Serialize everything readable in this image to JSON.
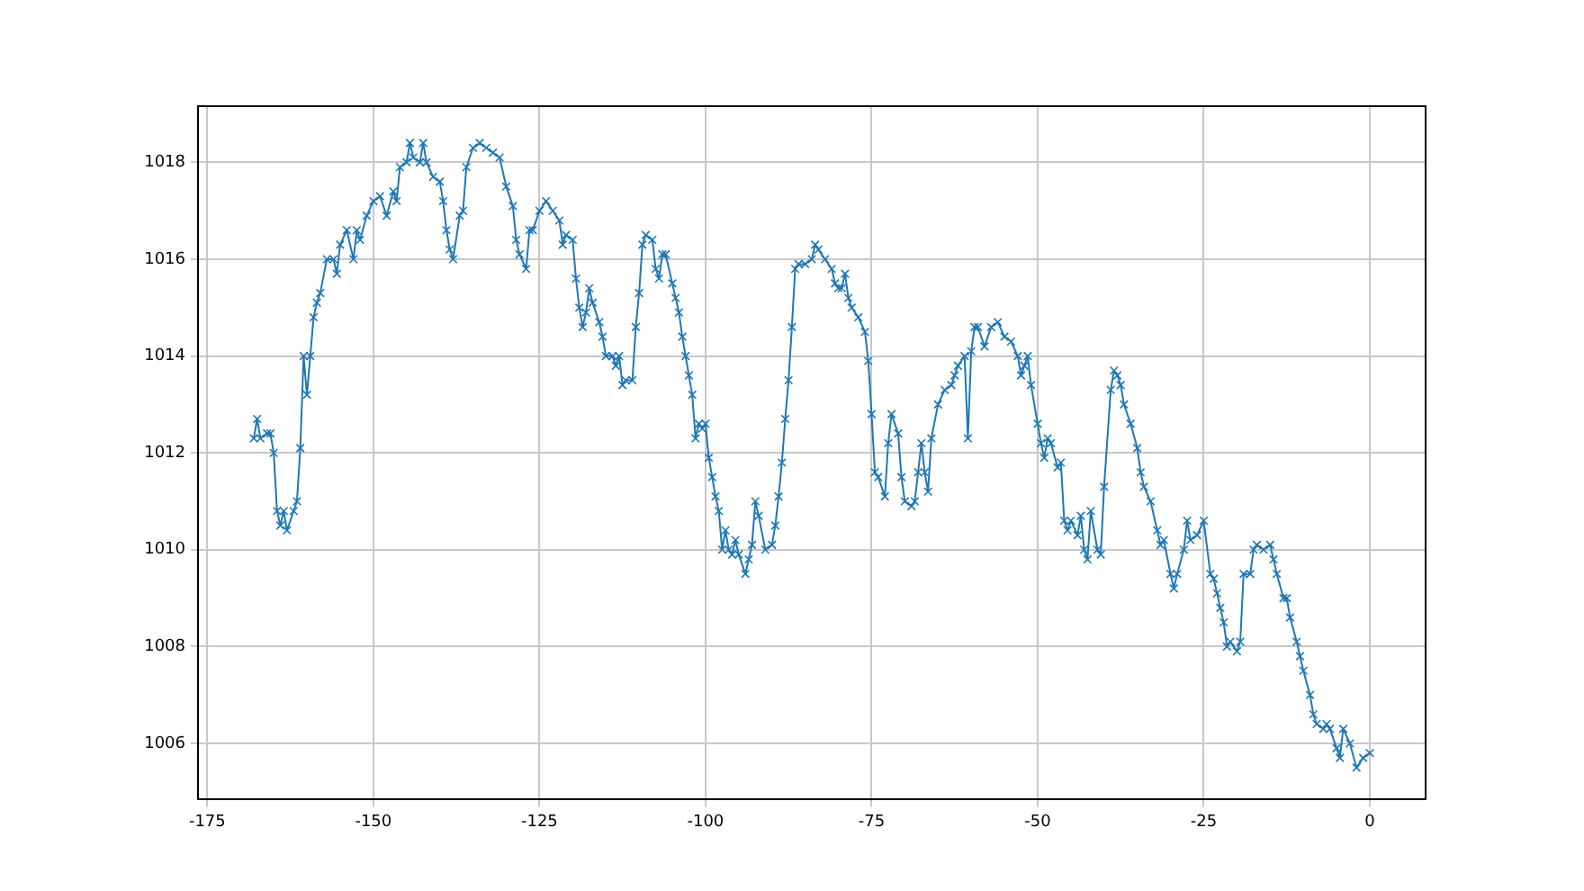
{
  "chart_data": {
    "type": "line",
    "x": [
      -168,
      -167.5,
      -167,
      -166,
      -165.5,
      -165,
      -164.5,
      -164,
      -163.5,
      -163,
      -162,
      -161.5,
      -161,
      -160.5,
      -160,
      -159.5,
      -159,
      -158.5,
      -158,
      -157,
      -156,
      -155.5,
      -155,
      -154,
      -153,
      -152.5,
      -152,
      -151,
      -150,
      -149,
      -148,
      -147,
      -146.5,
      -146,
      -145,
      -144.5,
      -144,
      -143,
      -142.5,
      -142,
      -141,
      -140,
      -139.5,
      -139,
      -138.5,
      -138,
      -137,
      -136.5,
      -136,
      -135,
      -134,
      -133,
      -132,
      -131,
      -130,
      -129,
      -128.5,
      -128,
      -127,
      -126.5,
      -126,
      -125,
      -124,
      -123,
      -122,
      -121.5,
      -121,
      -120,
      -119.5,
      -119,
      -118.5,
      -118,
      -117.5,
      -117,
      -116,
      -115.5,
      -115,
      -114,
      -113.5,
      -113,
      -112.5,
      -112,
      -111,
      -110.5,
      -110,
      -109.5,
      -109,
      -108,
      -107.5,
      -107,
      -106.5,
      -106,
      -105,
      -104.5,
      -104,
      -103.5,
      -103,
      -102.5,
      -102,
      -101.5,
      -101,
      -100.5,
      -100,
      -99.5,
      -99,
      -98.5,
      -98,
      -97.5,
      -97,
      -96.5,
      -96,
      -95.5,
      -95,
      -94,
      -93.5,
      -93,
      -92.5,
      -92,
      -91,
      -90,
      -89.5,
      -89,
      -88.5,
      -88,
      -87.5,
      -87,
      -86.5,
      -86,
      -85,
      -84,
      -83.5,
      -83,
      -82,
      -81,
      -80.5,
      -80,
      -79.5,
      -79,
      -78.5,
      -78,
      -77,
      -76,
      -75.5,
      -75,
      -74.5,
      -74,
      -73,
      -72.5,
      -72,
      -71,
      -70.5,
      -70,
      -69,
      -68.5,
      -68,
      -67.5,
      -67,
      -66.5,
      -66,
      -65,
      -64,
      -63,
      -62.5,
      -62,
      -61,
      -60.5,
      -60,
      -59.5,
      -59,
      -58,
      -57,
      -56,
      -55,
      -54,
      -53,
      -52.5,
      -52,
      -51.5,
      -51,
      -50,
      -49.5,
      -49,
      -48.5,
      -48,
      -47,
      -46.5,
      -46,
      -45.5,
      -45,
      -44,
      -43.5,
      -43,
      -42.5,
      -42,
      -41,
      -40.5,
      -40,
      -39,
      -38.5,
      -38,
      -37.5,
      -37,
      -36,
      -35,
      -34.5,
      -34,
      -33,
      -32,
      -31.5,
      -31,
      -30,
      -29.5,
      -29,
      -28,
      -27.5,
      -27,
      -26,
      -25,
      -24,
      -23.5,
      -23,
      -22.5,
      -22,
      -21.5,
      -21,
      -20,
      -19.5,
      -19,
      -18,
      -17.5,
      -17,
      -16,
      -15,
      -14.5,
      -14,
      -13,
      -12.5,
      -12,
      -11,
      -10.5,
      -10,
      -9,
      -8.5,
      -8,
      -7,
      -6.5,
      -6,
      -5,
      -4.5,
      -4,
      -3,
      -2,
      -1,
      0
    ],
    "series": [
      {
        "color": "#1f77b4",
        "values": [
          1012.3,
          1012.7,
          1012.3,
          1012.4,
          1012.4,
          1012.0,
          1010.8,
          1010.5,
          1010.8,
          1010.4,
          1010.8,
          1011.0,
          1012.1,
          1014.0,
          1013.2,
          1014.0,
          1014.8,
          1015.1,
          1015.3,
          1016.0,
          1016.0,
          1015.7,
          1016.3,
          1016.6,
          1016.0,
          1016.6,
          1016.4,
          1016.9,
          1017.2,
          1017.3,
          1016.9,
          1017.4,
          1017.2,
          1017.9,
          1018.0,
          1018.4,
          1018.1,
          1018.0,
          1018.4,
          1018.0,
          1017.7,
          1017.6,
          1017.2,
          1016.6,
          1016.2,
          1016.0,
          1016.9,
          1017.0,
          1017.9,
          1018.3,
          1018.4,
          1018.3,
          1018.2,
          1018.1,
          1017.5,
          1017.1,
          1016.4,
          1016.1,
          1015.8,
          1016.6,
          1016.6,
          1017.0,
          1017.2,
          1017.0,
          1016.8,
          1016.3,
          1016.5,
          1016.4,
          1015.6,
          1015.0,
          1014.6,
          1014.9,
          1015.4,
          1015.1,
          1014.7,
          1014.4,
          1014.0,
          1014.0,
          1013.8,
          1014.0,
          1013.4,
          1013.5,
          1013.5,
          1014.6,
          1015.3,
          1016.3,
          1016.5,
          1016.4,
          1015.8,
          1015.6,
          1016.1,
          1016.1,
          1015.5,
          1015.2,
          1014.9,
          1014.4,
          1014.0,
          1013.6,
          1013.2,
          1012.3,
          1012.6,
          1012.5,
          1012.6,
          1011.9,
          1011.5,
          1011.1,
          1010.8,
          1010.0,
          1010.4,
          1010.0,
          1009.9,
          1010.2,
          1009.9,
          1009.5,
          1009.8,
          1010.1,
          1011.0,
          1010.7,
          1010.0,
          1010.1,
          1010.5,
          1011.1,
          1011.8,
          1012.7,
          1013.5,
          1014.6,
          1015.8,
          1015.9,
          1015.9,
          1016.0,
          1016.3,
          1016.2,
          1016.0,
          1015.8,
          1015.5,
          1015.4,
          1015.4,
          1015.7,
          1015.2,
          1015.0,
          1014.8,
          1014.5,
          1013.9,
          1012.8,
          1011.6,
          1011.5,
          1011.1,
          1012.2,
          1012.8,
          1012.4,
          1011.5,
          1011.0,
          1010.9,
          1011.0,
          1011.6,
          1012.2,
          1011.6,
          1011.2,
          1012.3,
          1013.0,
          1013.3,
          1013.4,
          1013.6,
          1013.8,
          1014.0,
          1012.3,
          1014.1,
          1014.6,
          1014.6,
          1014.2,
          1014.6,
          1014.7,
          1014.4,
          1014.3,
          1014.0,
          1013.6,
          1013.8,
          1014.0,
          1013.4,
          1012.6,
          1012.2,
          1011.9,
          1012.3,
          1012.2,
          1011.7,
          1011.8,
          1010.6,
          1010.4,
          1010.6,
          1010.3,
          1010.7,
          1010.0,
          1009.8,
          1010.8,
          1010.0,
          1009.9,
          1011.3,
          1013.3,
          1013.7,
          1013.6,
          1013.4,
          1013.0,
          1012.6,
          1012.1,
          1011.6,
          1011.3,
          1011.0,
          1010.4,
          1010.1,
          1010.2,
          1009.5,
          1009.2,
          1009.5,
          1010.0,
          1010.6,
          1010.2,
          1010.3,
          1010.6,
          1009.5,
          1009.4,
          1009.1,
          1008.8,
          1008.5,
          1008.0,
          1008.1,
          1007.9,
          1008.1,
          1009.5,
          1009.5,
          1010.0,
          1010.1,
          1010.0,
          1010.1,
          1009.8,
          1009.5,
          1009.0,
          1009.0,
          1008.6,
          1008.1,
          1007.8,
          1007.5,
          1007.0,
          1006.6,
          1006.4,
          1006.3,
          1006.4,
          1006.3,
          1005.9,
          1005.7,
          1006.3,
          1006.0,
          1005.5,
          1005.7,
          1005.8
        ]
      }
    ],
    "xlim": [
      -176.4,
      8.4
    ],
    "xticks": [
      -175,
      -150,
      -125,
      -100,
      -75,
      -50,
      -25,
      0
    ],
    "ylim": [
      1004.84,
      1019.16
    ],
    "yticks": [
      1006,
      1008,
      1010,
      1012,
      1014,
      1016,
      1018
    ],
    "grid": true,
    "marker": "cross",
    "line_style": "solid",
    "legend": false
  }
}
